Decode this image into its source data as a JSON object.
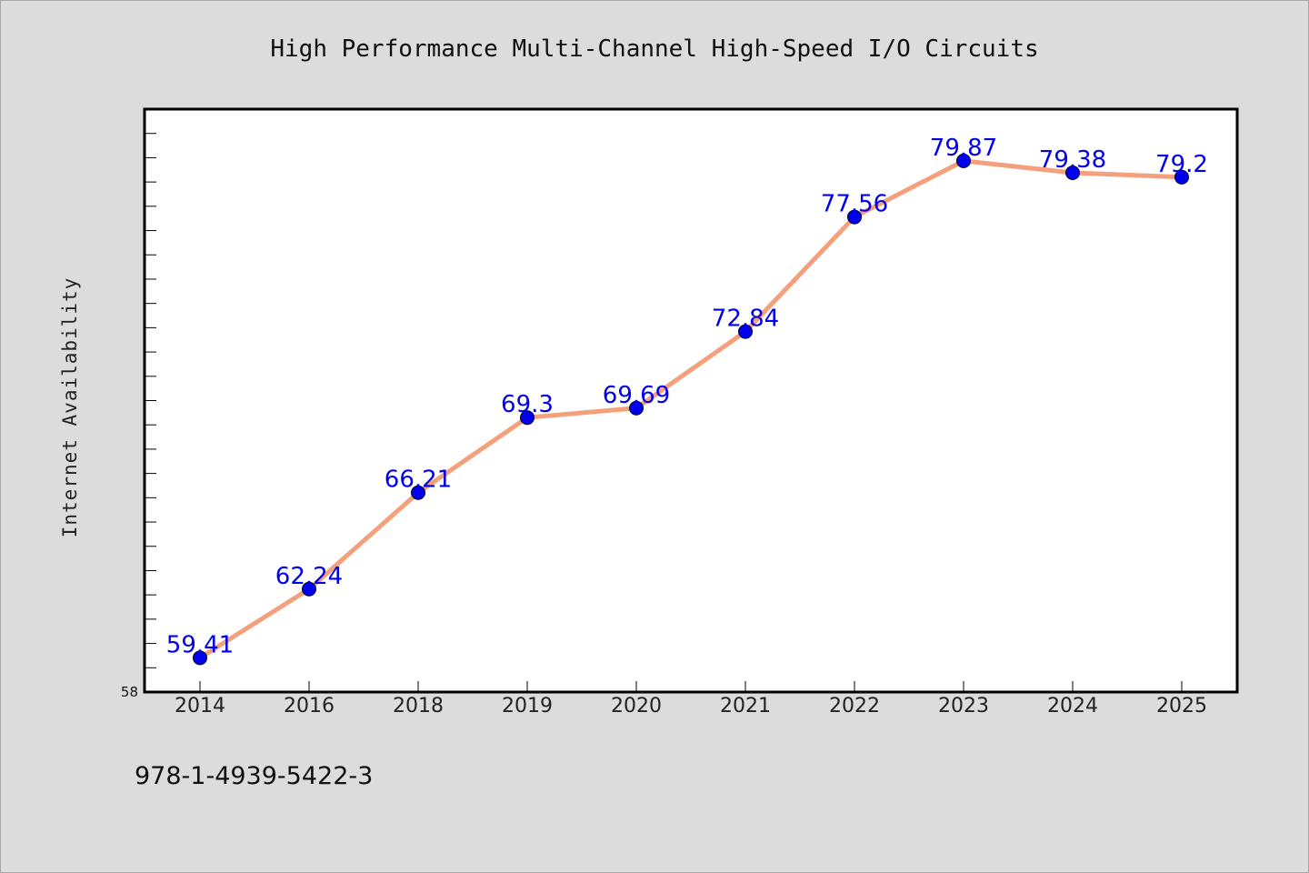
{
  "chart_data": {
    "type": "line",
    "title": "High Performance Multi-Channel High-Speed I/O Circuits",
    "xlabel": "",
    "ylabel": "Internet Availability",
    "categories": [
      "2014",
      "2016",
      "2018",
      "2019",
      "2020",
      "2021",
      "2022",
      "2023",
      "2024",
      "2025"
    ],
    "values": [
      59.41,
      62.24,
      66.21,
      69.3,
      69.69,
      72.84,
      77.56,
      79.87,
      79.38,
      79.2
    ],
    "data_labels": [
      "59.41",
      "62.24",
      "66.21",
      "69.3",
      "69.69",
      "72.84",
      "77.56",
      "79.87",
      "79.38",
      "79.2"
    ],
    "y_tick_labels": [
      "58"
    ],
    "ylim": [
      58,
      82
    ],
    "grid": false,
    "legend": "none",
    "colors": {
      "line": "#f4a07c",
      "marker": "#0000ee",
      "data_label": "#0000ee",
      "plot_background": "#ffffff",
      "figure_background": "#dcdcdc"
    }
  },
  "footer_text": "978-1-4939-5422-3"
}
